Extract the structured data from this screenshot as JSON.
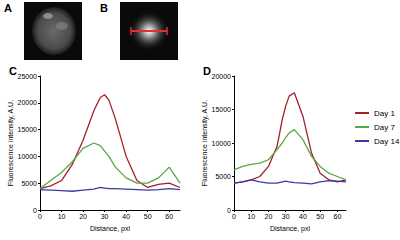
{
  "images": [
    {
      "label": "A"
    },
    {
      "label": "B"
    }
  ],
  "chart_data": [
    {
      "type": "line",
      "title": "C",
      "x_label": "Distance, pxl",
      "y_label": "Fluorescence intensity, A.U.",
      "x": [
        0,
        5,
        10,
        15,
        20,
        25,
        28,
        30,
        32,
        35,
        40,
        45,
        50,
        55,
        60,
        65
      ],
      "series": [
        {
          "name": "Day 1",
          "color": "#a3202a",
          "values": [
            4000,
            4500,
            5500,
            8500,
            13000,
            18500,
            21000,
            21500,
            20500,
            17000,
            10000,
            5500,
            4200,
            4800,
            5000,
            4200
          ]
        },
        {
          "name": "Day 7",
          "color": "#58a846",
          "values": [
            4000,
            5500,
            7000,
            9000,
            11500,
            12500,
            12000,
            11000,
            10000,
            8000,
            6000,
            5000,
            5000,
            6000,
            8000,
            5000
          ]
        },
        {
          "name": "Day 14",
          "color": "#3b3b9e",
          "values": [
            3800,
            3700,
            3600,
            3500,
            3700,
            3900,
            4200,
            4100,
            4000,
            4000,
            3900,
            3800,
            3700,
            3800,
            4000,
            3800
          ]
        }
      ],
      "xlim": [
        0,
        65
      ],
      "xticks": [
        0,
        10,
        20,
        30,
        40,
        50,
        60
      ],
      "ylim": [
        0,
        25000
      ],
      "yticks": [
        0,
        5000,
        10000,
        15000,
        20000,
        25000
      ],
      "grid": false
    },
    {
      "type": "line",
      "title": "D",
      "x_label": "Distance, pxl",
      "y_label": "Fluorescence intensity, A.U.",
      "x": [
        0,
        5,
        10,
        15,
        20,
        25,
        28,
        30,
        32,
        35,
        40,
        45,
        50,
        55,
        60,
        65
      ],
      "series": [
        {
          "name": "Day 1",
          "color": "#a3202a",
          "values": [
            4000,
            4200,
            4500,
            5000,
            6500,
            9500,
            13500,
            15500,
            17000,
            17500,
            14000,
            8500,
            5500,
            4500,
            4200,
            4500
          ]
        },
        {
          "name": "Day 7",
          "color": "#58a846",
          "values": [
            6000,
            6500,
            6800,
            7000,
            7500,
            9000,
            10000,
            10800,
            11500,
            12000,
            10500,
            8000,
            6500,
            5500,
            5000,
            4500
          ]
        },
        {
          "name": "Day 14",
          "color": "#3b3b9e",
          "values": [
            4000,
            4200,
            4500,
            4200,
            4000,
            4000,
            4200,
            4300,
            4200,
            4100,
            4000,
            3900,
            4200,
            4400,
            4300,
            4200
          ]
        }
      ],
      "xlim": [
        0,
        65
      ],
      "xticks": [
        0,
        10,
        20,
        30,
        40,
        50,
        60
      ],
      "ylim": [
        0,
        20000
      ],
      "yticks": [
        0,
        5000,
        10000,
        15000,
        20000
      ],
      "grid": false,
      "legend": "right"
    }
  ]
}
